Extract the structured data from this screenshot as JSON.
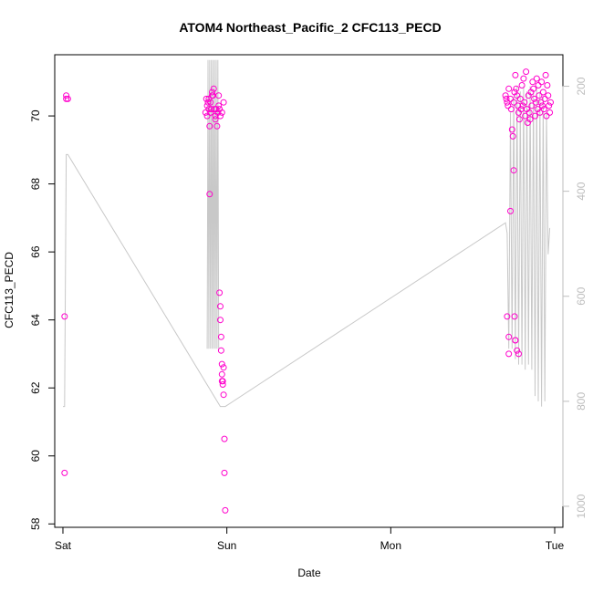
{
  "chart_data": {
    "type": "scatter",
    "title": "ATOM4 Northeast_Pacific_2 CFC113_PECD",
    "xlabel": "Date",
    "ylabel": "CFC113_PECD",
    "x_tick_labels": [
      "Sat",
      "Sun",
      "Mon",
      "Tue"
    ],
    "x_ticks": [
      0,
      1,
      2,
      3
    ],
    "x_range": [
      -0.05,
      3.05
    ],
    "y_ticks": [
      58,
      60,
      62,
      64,
      66,
      68,
      70
    ],
    "y_range": [
      57.9,
      71.8
    ],
    "y2_ticks": [
      200,
      400,
      600,
      800,
      1000
    ],
    "y2_range": [
      1040,
      140
    ],
    "y2_reversed": true,
    "grid": false,
    "colors": {
      "points": "#ff00cc",
      "depth_line": "#c8c8c8",
      "right_axis": "#bdbdbd"
    },
    "series": [
      {
        "values_x": [
          0.01,
          0.02,
          0.02,
          0.03,
          0.01,
          0.87,
          0.875,
          0.88,
          0.88,
          0.885,
          0.89,
          0.89,
          0.895,
          0.9,
          0.9,
          0.905,
          0.91,
          0.91,
          0.915,
          0.92,
          0.925,
          0.93,
          0.93,
          0.935,
          0.94,
          0.945,
          0.95,
          0.95,
          0.955,
          0.96,
          0.895,
          0.955,
          0.96,
          0.96,
          0.965,
          0.965,
          0.97,
          0.97,
          0.975,
          0.975,
          0.98,
          0.98,
          0.985,
          0.985,
          0.99,
          0.97,
          0.97,
          0.98,
          2.7,
          2.705,
          2.71,
          2.715,
          2.72,
          2.73,
          2.735,
          2.74,
          2.745,
          2.75,
          2.755,
          2.76,
          2.765,
          2.77,
          2.775,
          2.78,
          2.785,
          2.79,
          2.795,
          2.8,
          2.805,
          2.81,
          2.815,
          2.82,
          2.825,
          2.83,
          2.835,
          2.84,
          2.845,
          2.85,
          2.855,
          2.86,
          2.865,
          2.87,
          2.875,
          2.88,
          2.885,
          2.89,
          2.895,
          2.9,
          2.905,
          2.91,
          2.915,
          2.92,
          2.925,
          2.93,
          2.935,
          2.94,
          2.945,
          2.95,
          2.955,
          2.96,
          2.965,
          2.97,
          2.975,
          2.71,
          2.72,
          2.73,
          2.755,
          2.76,
          2.77,
          2.78,
          2.75,
          2.76,
          2.72
        ],
        "values": [
          59.5,
          70.5,
          70.6,
          70.5,
          64.1,
          70.1,
          70.5,
          70.3,
          70.0,
          70.4,
          70.2,
          70.5,
          69.7,
          70.1,
          70.4,
          70.2,
          70.6,
          70.7,
          70.6,
          70.8,
          70.2,
          70.0,
          69.9,
          70.2,
          69.7,
          70.1,
          70.3,
          70.6,
          70.2,
          70.0,
          67.7,
          64.8,
          64.4,
          64.0,
          63.5,
          63.1,
          62.7,
          62.4,
          62.2,
          62.1,
          62.6,
          61.8,
          60.5,
          59.5,
          58.4,
          62.2,
          70.1,
          70.4,
          70.6,
          70.5,
          70.4,
          70.3,
          70.8,
          70.5,
          70.2,
          69.6,
          69.4,
          70.4,
          70.7,
          71.2,
          70.8,
          70.6,
          70.3,
          70.1,
          69.9,
          70.5,
          70.2,
          70.9,
          70.3,
          71.1,
          70.4,
          70.0,
          71.3,
          70.2,
          69.8,
          70.6,
          70.1,
          69.9,
          70.7,
          70.3,
          71.0,
          70.8,
          70.5,
          70.0,
          70.4,
          71.1,
          70.2,
          70.9,
          70.6,
          70.1,
          70.4,
          71.0,
          70.3,
          70.7,
          70.2,
          70.5,
          71.2,
          70.0,
          70.9,
          70.6,
          70.3,
          70.1,
          70.4,
          64.1,
          63.5,
          67.2,
          64.1,
          63.4,
          63.1,
          63.0,
          68.4,
          63.4,
          63.0
        ]
      }
    ],
    "depth_profile": {
      "x": [
        0.0,
        0.01,
        0.02,
        0.03,
        0.96,
        0.97,
        0.99,
        2.7,
        2.71,
        2.72,
        2.73,
        2.74,
        2.75,
        2.76,
        2.77,
        2.78,
        2.79,
        2.8,
        2.81,
        2.82,
        2.83,
        2.84,
        2.85,
        2.86,
        2.87,
        2.88,
        2.89,
        2.9,
        2.91,
        2.92,
        2.93,
        2.94,
        2.95,
        2.96,
        2.97
      ],
      "depth": [
        810,
        810,
        330,
        330,
        810,
        810,
        810,
        460,
        480,
        700,
        250,
        700,
        220,
        720,
        200,
        730,
        210,
        730,
        200,
        740,
        210,
        730,
        200,
        740,
        210,
        790,
        200,
        800,
        210,
        810,
        220,
        800,
        250,
        520,
        470
      ]
    },
    "depth_profile_sun": {
      "x": [
        0.88,
        0.885,
        0.89,
        0.895,
        0.9,
        0.905,
        0.91,
        0.915,
        0.92,
        0.925,
        0.93,
        0.935,
        0.94,
        0.945,
        0.95
      ],
      "depth": [
        700,
        150,
        700,
        150,
        700,
        150,
        700,
        150,
        700,
        150,
        700,
        150,
        700,
        150,
        700
      ]
    }
  }
}
